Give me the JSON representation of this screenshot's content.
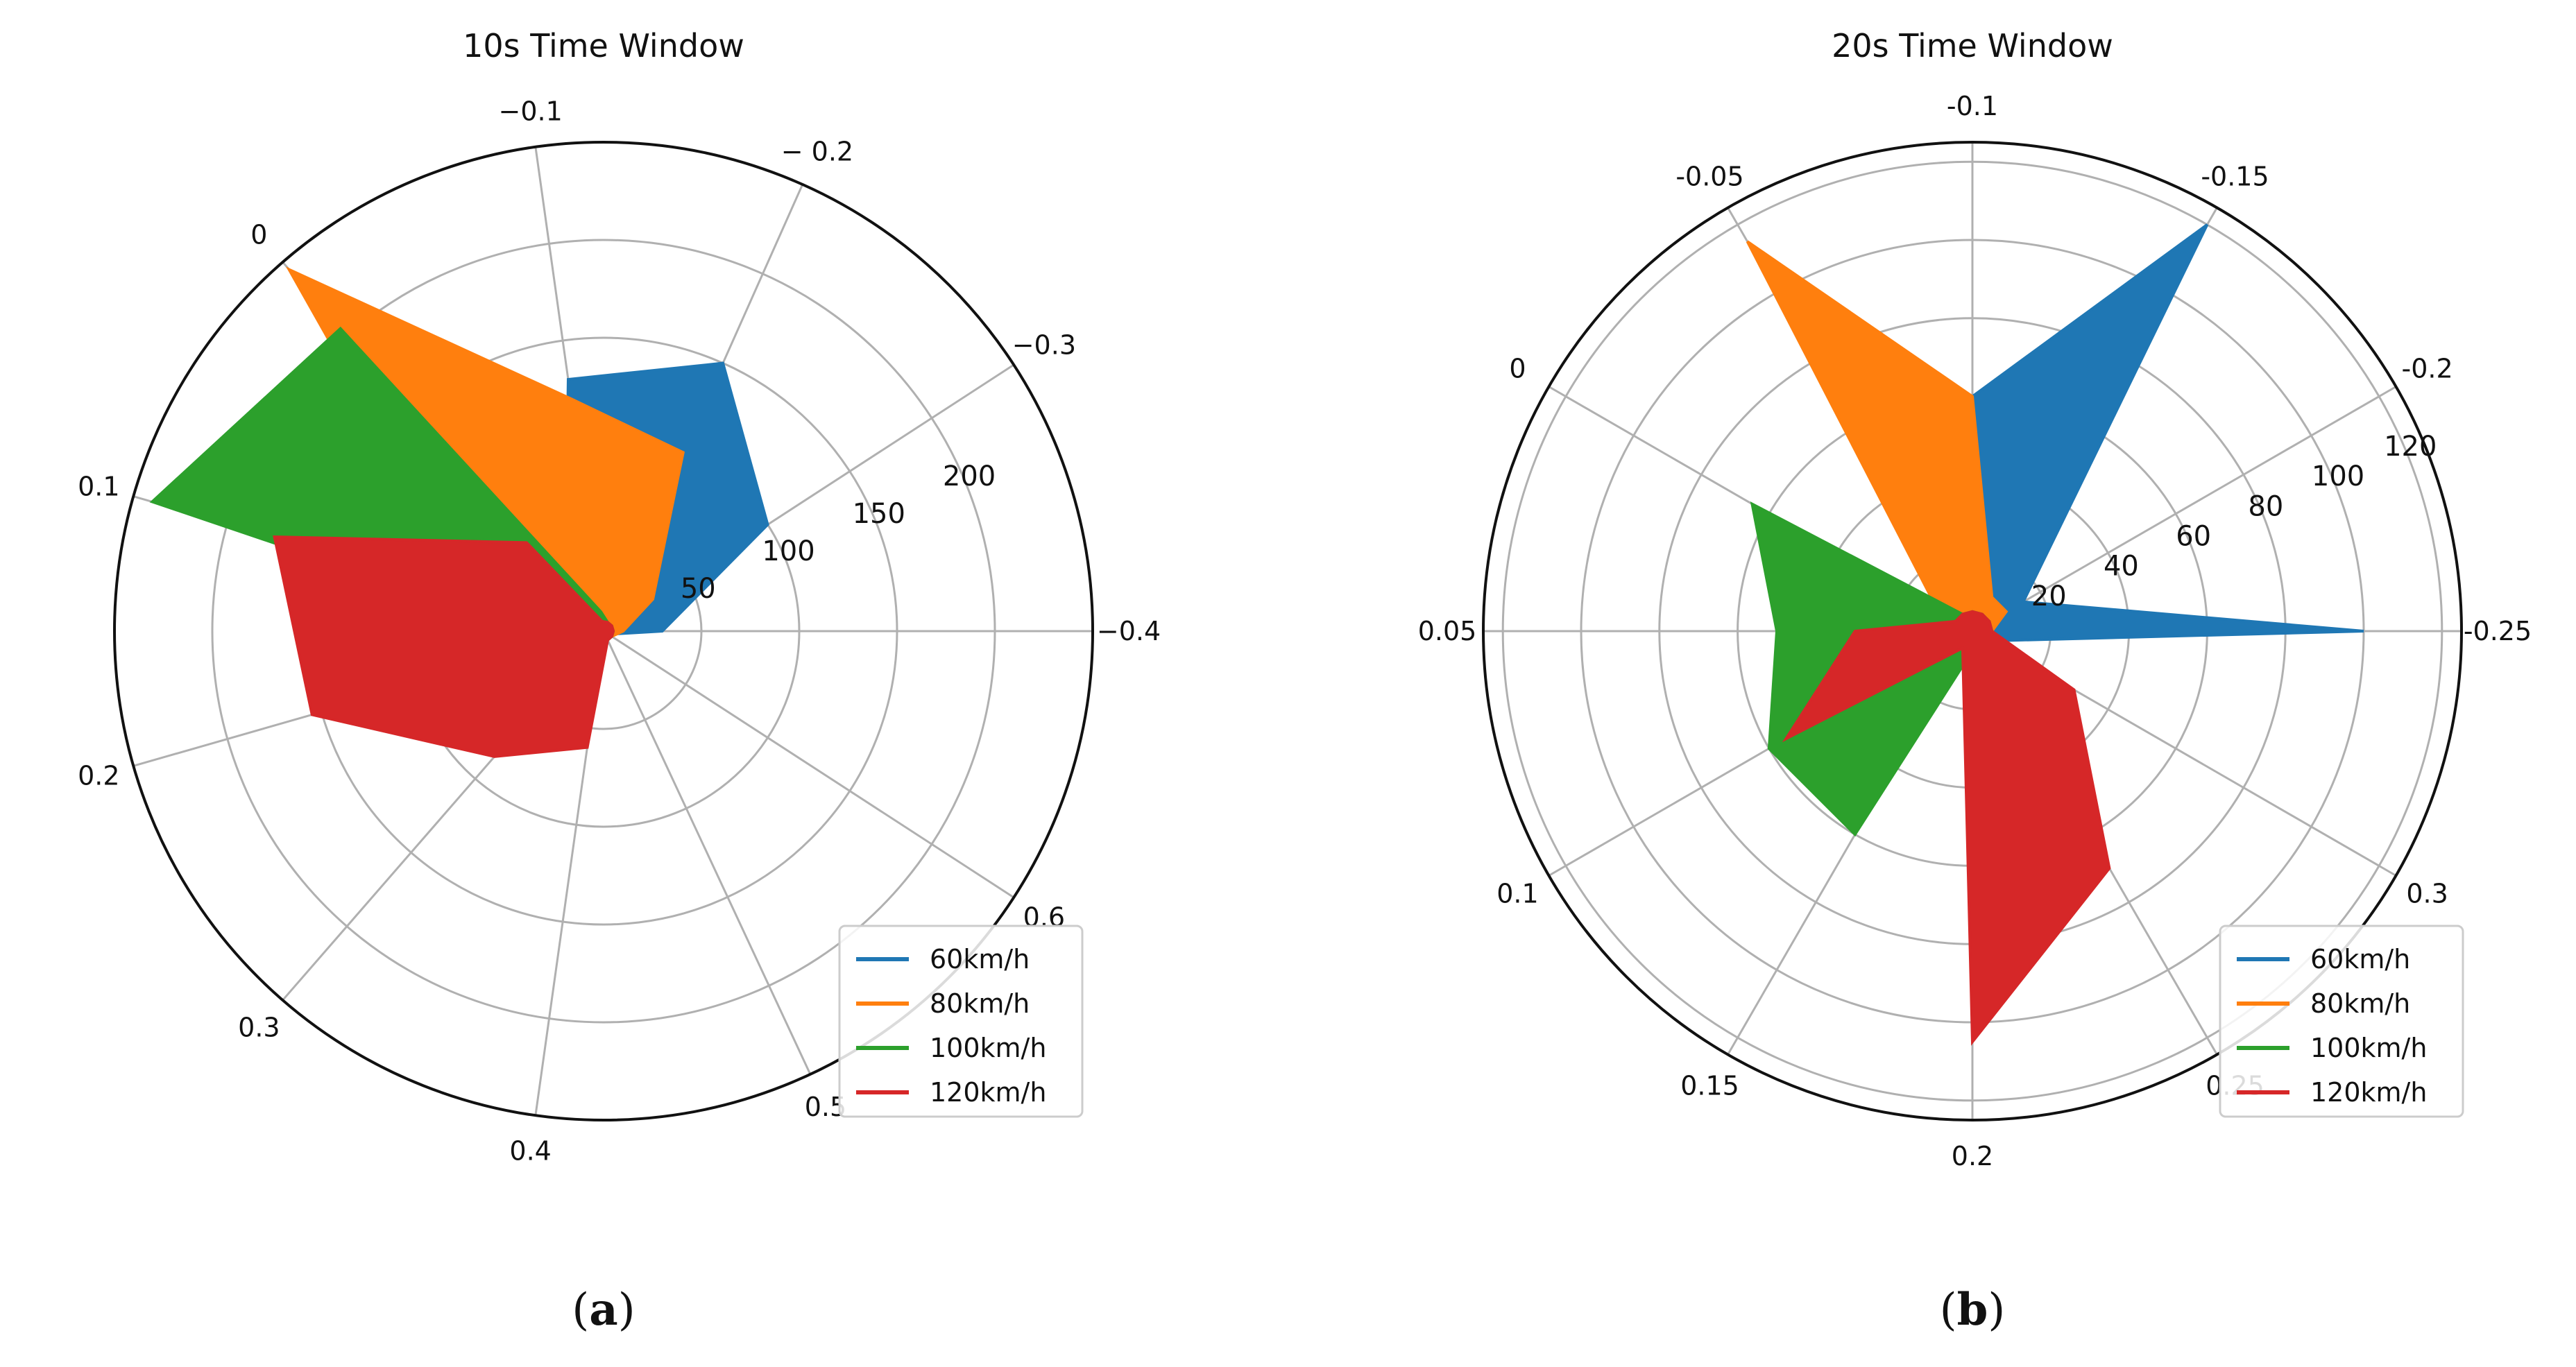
{
  "chart_data": [
    {
      "type": "radar",
      "title": "10s Time Window",
      "panel_label": "a",
      "angle_labels": [
        "−0.4",
        "−0.3",
        "− 0.2",
        "−0.1",
        "0",
        "0.1",
        "0.2",
        "0.3",
        "0.4",
        "0.5",
        "0.6"
      ],
      "angles_deg": [
        0,
        33,
        66,
        98,
        131,
        164,
        196,
        229,
        262,
        295,
        327
      ],
      "radial_ticks": [
        50,
        100,
        150,
        200
      ],
      "rmax": 250,
      "legend_position": "lower-right",
      "grid": true,
      "series": [
        {
          "name": "60km/h",
          "color": "#1f77b4",
          "values": [
            30,
            100,
            150,
            130,
            30,
            10,
            5,
            3,
            3,
            3,
            3
          ]
        },
        {
          "name": "80km/h",
          "color": "#ff7f0e",
          "values": [
            10,
            30,
            100,
            120,
            245,
            70,
            10,
            5,
            5,
            5,
            5
          ]
        },
        {
          "name": "100km/h",
          "color": "#2ca02c",
          "values": [
            5,
            5,
            5,
            10,
            205,
            240,
            20,
            10,
            5,
            5,
            5
          ]
        },
        {
          "name": "120km/h",
          "color": "#d62728",
          "values": [
            5,
            5,
            5,
            5,
            60,
            175,
            155,
            85,
            60,
            5,
            5
          ]
        }
      ]
    },
    {
      "type": "radar",
      "title": "20s Time Window",
      "panel_label": "b",
      "angle_labels": [
        "-0.25",
        "-0.2",
        "-0.15",
        "-0.1",
        "-0.05",
        "0",
        "0.05",
        "0.1",
        "0.15",
        "0.2",
        "0.25",
        "0.3"
      ],
      "angles_deg": [
        0,
        30,
        60,
        90,
        120,
        150,
        180,
        210,
        240,
        270,
        300,
        330
      ],
      "radial_ticks": [
        20,
        40,
        60,
        80,
        100,
        120
      ],
      "rmax": 125,
      "legend_position": "lower-right",
      "grid": true,
      "series": [
        {
          "name": "60km/h",
          "color": "#1f77b4",
          "values": [
            100,
            15,
            120,
            60,
            15,
            5,
            5,
            5,
            5,
            5,
            5,
            5
          ]
        },
        {
          "name": "80km/h",
          "color": "#ff7f0e",
          "values": [
            5,
            10,
            10,
            60,
            115,
            10,
            5,
            5,
            5,
            5,
            5,
            5
          ]
        },
        {
          "name": "100km/h",
          "color": "#2ca02c",
          "values": [
            5,
            5,
            5,
            5,
            5,
            65,
            50,
            60,
            60,
            5,
            5,
            5
          ]
        },
        {
          "name": "120km/h",
          "color": "#d62728",
          "values": [
            5,
            5,
            5,
            5,
            5,
            5,
            30,
            55,
            5,
            105,
            70,
            30
          ]
        }
      ]
    }
  ]
}
